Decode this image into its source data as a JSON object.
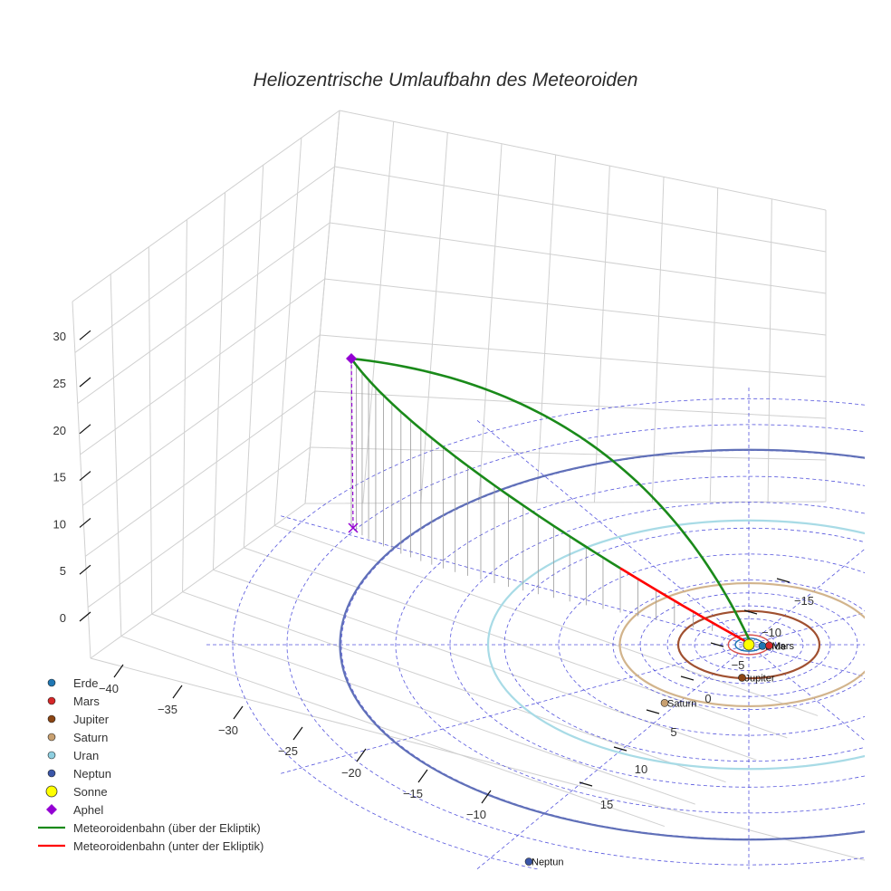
{
  "chart_data": {
    "type": "3d-orbit",
    "title": "Heliozentrische Umlaufbahn des Meteoroiden",
    "x_ticks": [
      -40,
      -35,
      -30,
      -25,
      -20,
      -15,
      -10
    ],
    "y_ticks": [
      -15,
      -10,
      -5,
      0,
      5,
      10,
      15
    ],
    "z_ticks": [
      0,
      5,
      10,
      15,
      20,
      25,
      30
    ],
    "planets": [
      {
        "name": "Erde",
        "color": "#1f77b4",
        "orbit_radius_au": 1.0
      },
      {
        "name": "Mars",
        "color": "#d62728",
        "orbit_radius_au": 1.52
      },
      {
        "name": "Jupiter",
        "color": "#8b4513",
        "orbit_radius_au": 5.2
      },
      {
        "name": "Saturn",
        "color": "#c8a070",
        "orbit_radius_au": 9.5
      },
      {
        "name": "Uran",
        "color": "#8ecfe0",
        "orbit_radius_au": 19.2
      },
      {
        "name": "Neptun",
        "color": "#3a56a8",
        "orbit_radius_au": 30.1
      }
    ],
    "sun": {
      "name": "Sonne",
      "color": "#ffff00"
    },
    "aphel": {
      "name": "Aphel",
      "color": "#9400d3",
      "x": -38.5,
      "y": -8.0,
      "z": 26.5
    },
    "meteoroid_orbit": {
      "above_label": "Meteoroidenbahn (über der Ekliptik)",
      "below_label": "Meteoroidenbahn (unter der Ekliptik)",
      "above_color": "#1a8a1a",
      "below_color": "#ff0000"
    },
    "legend": [
      "Erde",
      "Mars",
      "Jupiter",
      "Saturn",
      "Uran",
      "Neptun",
      "Sonne",
      "Aphel",
      "Meteoroidenbahn (über der Ekliptik)",
      "Meteoroidenbahn (unter der Ekliptik)"
    ],
    "legend_position": "bottom-left"
  }
}
